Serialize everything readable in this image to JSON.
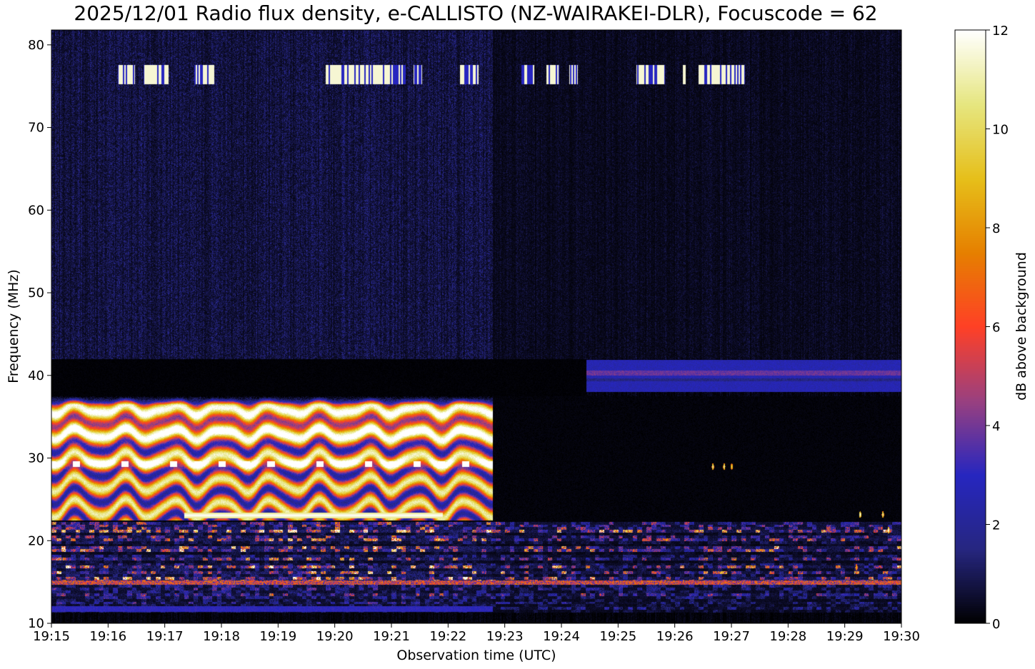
{
  "chart_data": {
    "type": "heatmap",
    "title": "2025/12/01 Radio flux density, e-CALLISTO (NZ-WAIRAKEI-DLR), Focuscode = 62",
    "xlabel": "Observation time (UTC)",
    "ylabel": "Frequency (MHz)",
    "xlim": [
      "19:15",
      "19:30"
    ],
    "ylim": [
      10,
      81.8
    ],
    "xticks": [
      "19:15",
      "19:16",
      "19:17",
      "19:18",
      "19:19",
      "19:20",
      "19:21",
      "19:22",
      "19:23",
      "19:24",
      "19:25",
      "19:26",
      "19:27",
      "19:28",
      "19:29",
      "19:30"
    ],
    "yticks": [
      10,
      20,
      30,
      40,
      50,
      60,
      70,
      80
    ],
    "colorbar": {
      "label": "dB above background",
      "range": [
        0,
        12
      ],
      "ticks": [
        0,
        2,
        4,
        6,
        8,
        10,
        12
      ],
      "colormap": "CMRmap",
      "colors": [
        "#000000",
        "#262680",
        "#2626bf",
        "#994080",
        "#ff4026",
        "#e68000",
        "#e6bf1a",
        "#e6e680",
        "#ffffff"
      ]
    },
    "features": [
      {
        "kind": "interference_band",
        "freq_mhz": [
          23,
          37
        ],
        "time": [
          "19:15:00",
          "19:22:47"
        ],
        "peak_db": 12
      },
      {
        "kind": "narrowband_line",
        "freq_mhz": 23.1,
        "time": [
          "19:17:20",
          "19:21:54"
        ],
        "db": 11
      },
      {
        "kind": "band",
        "freq_mhz": [
          38,
          42
        ],
        "time": [
          "19:24:26",
          "19:30:00"
        ],
        "db": 2.6
      },
      {
        "kind": "narrowband_line",
        "freq_mhz": 11.8,
        "time": [
          "19:15:00",
          "19:22:47"
        ],
        "db": 2.8
      },
      {
        "kind": "rfi",
        "freq_mhz": [
          10,
          22
        ],
        "time": [
          "19:15:00",
          "19:30:00"
        ],
        "db": 3
      },
      {
        "kind": "background",
        "freq_mhz": [
          42,
          81.8
        ],
        "time": [
          "19:15:00",
          "19:22:47"
        ],
        "db": 1.1
      },
      {
        "kind": "background",
        "freq_mhz": [
          42,
          81.8
        ],
        "time": [
          "19:22:47",
          "19:30:00"
        ],
        "db": 0.6
      }
    ],
    "bursts_76mhz": [
      [
        "19:16:10",
        "19:16:28"
      ],
      [
        "19:16:37",
        "19:17:04"
      ],
      [
        "19:17:31",
        "19:17:52"
      ],
      [
        "19:19:50",
        "19:21:15"
      ],
      [
        "19:21:23",
        "19:21:32"
      ],
      [
        "19:22:12",
        "19:22:32"
      ],
      [
        "19:23:17",
        "19:23:31"
      ],
      [
        "19:23:44",
        "19:23:57"
      ],
      [
        "19:24:08",
        "19:24:17"
      ],
      [
        "19:25:19",
        "19:25:49"
      ],
      [
        "19:26:08",
        "19:26:11"
      ],
      [
        "19:26:25",
        "19:27:14"
      ]
    ],
    "spots": [
      {
        "freq_mhz": 29,
        "time": "19:26:40",
        "db": 11
      },
      {
        "freq_mhz": 29,
        "time": "19:26:52",
        "db": 11
      },
      {
        "freq_mhz": 29,
        "time": "19:27:00",
        "db": 10
      },
      {
        "freq_mhz": 23.2,
        "time": "19:29:16",
        "db": 12
      },
      {
        "freq_mhz": 23.2,
        "time": "19:29:40",
        "db": 11
      },
      {
        "freq_mhz": 21.3,
        "time": "19:29:46",
        "db": 12
      },
      {
        "freq_mhz": 16.8,
        "time": "19:29:12",
        "db": 9
      }
    ]
  }
}
